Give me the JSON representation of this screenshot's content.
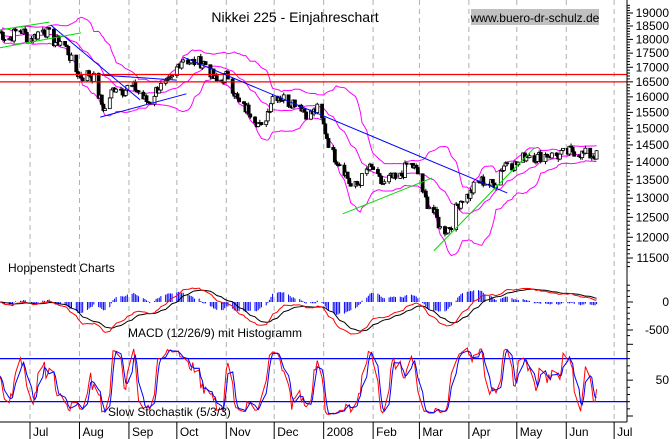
{
  "chart_data": {
    "type": "candlestick",
    "title": "Nikkei 225 - Einjahreschart",
    "watermark": "www.buero-dr-schulz.de",
    "source_label": "Hoppenstedt Charts",
    "y_scale": "log",
    "ylim": [
      11300,
      19300
    ],
    "grid": "vertical dashed at month starts",
    "y_ticks": [
      19000,
      18500,
      18000,
      17500,
      17000,
      16500,
      16000,
      15500,
      15000,
      14500,
      14000,
      13500,
      13000,
      12500,
      12000,
      11500
    ],
    "x_ticks": [
      {
        "date": "2007-07-01",
        "label": "Jul"
      },
      {
        "date": "2007-08-01",
        "label": "Aug"
      },
      {
        "date": "2007-09-01",
        "label": "Sep"
      },
      {
        "date": "2007-10-01",
        "label": "Oct"
      },
      {
        "date": "2007-11-01",
        "label": "Nov"
      },
      {
        "date": "2007-12-01",
        "label": "Dec"
      },
      {
        "date": "2008-01-01",
        "label": "2008"
      },
      {
        "date": "2008-02-01",
        "label": "Feb"
      },
      {
        "date": "2008-03-01",
        "label": "Mar"
      },
      {
        "date": "2008-04-01",
        "label": "Apr"
      },
      {
        "date": "2008-05-01",
        "label": "May"
      },
      {
        "date": "2008-06-01",
        "label": "Jun"
      },
      {
        "date": "2008-07-01",
        "label": "Jul"
      }
    ],
    "weekly_close": {
      "dates": [
        "2007-06-15",
        "2007-06-22",
        "2007-06-29",
        "2007-07-06",
        "2007-07-13",
        "2007-07-20",
        "2007-07-27",
        "2007-08-03",
        "2007-08-10",
        "2007-08-17",
        "2007-08-24",
        "2007-08-31",
        "2007-09-07",
        "2007-09-14",
        "2007-09-21",
        "2007-09-28",
        "2007-10-05",
        "2007-10-12",
        "2007-10-19",
        "2007-10-26",
        "2007-11-02",
        "2007-11-09",
        "2007-11-16",
        "2007-11-23",
        "2007-11-30",
        "2007-12-07",
        "2007-12-14",
        "2007-12-21",
        "2007-12-28",
        "2008-01-04",
        "2008-01-11",
        "2008-01-18",
        "2008-01-25",
        "2008-02-01",
        "2008-02-08",
        "2008-02-15",
        "2008-02-22",
        "2008-02-29",
        "2008-03-07",
        "2008-03-14",
        "2008-03-21",
        "2008-03-28",
        "2008-04-04",
        "2008-04-11",
        "2008-04-18",
        "2008-04-25",
        "2008-05-02",
        "2008-05-09",
        "2008-05-16",
        "2008-05-23",
        "2008-05-30",
        "2008-06-06",
        "2008-06-13",
        "2008-06-20"
      ],
      "values": [
        18160,
        18240,
        18130,
        18240,
        18160,
        17980,
        17190,
        16730,
        16560,
        15640,
        16290,
        16390,
        16060,
        15960,
        16230,
        16730,
        17190,
        17330,
        16980,
        16630,
        16560,
        15900,
        15410,
        15100,
        15900,
        16060,
        15740,
        15570,
        15510,
        14650,
        13920,
        13360,
        13500,
        13830,
        13360,
        13500,
        13920,
        13650,
        12820,
        12180,
        12380,
        12950,
        13360,
        13360,
        13550,
        13920,
        14070,
        14120,
        14290,
        14070,
        14350,
        14200,
        14350,
        14070
      ]
    },
    "horizontal_lines": [
      {
        "value": 16750,
        "color": "#ff0000"
      },
      {
        "value": 16500,
        "color": "#ff0000"
      }
    ],
    "trendlines": [
      {
        "color": "#0000ff",
        "points": [
          [
            "2007-07-14",
            18540
          ],
          [
            "2007-09-08",
            15900
          ]
        ]
      },
      {
        "color": "#0000ff",
        "points": [
          [
            "2007-08-15",
            16730
          ],
          [
            "2007-10-01",
            16560
          ]
        ]
      },
      {
        "color": "#0000ff",
        "points": [
          [
            "2007-08-14",
            15350
          ],
          [
            "2007-10-07",
            16100
          ]
        ]
      },
      {
        "color": "#0000ff",
        "points": [
          [
            "2007-10-05",
            17360
          ],
          [
            "2008-04-25",
            13140
          ]
        ]
      },
      {
        "color": "#00dd00",
        "points": [
          [
            "2007-06-12",
            17690
          ],
          [
            "2007-08-02",
            18240
          ]
        ]
      },
      {
        "color": "#00dd00",
        "points": [
          [
            "2007-06-12",
            18350
          ],
          [
            "2007-07-13",
            18650
          ]
        ]
      },
      {
        "color": "#00dd00",
        "points": [
          [
            "2008-01-13",
            12590
          ],
          [
            "2008-03-09",
            13550
          ]
        ]
      },
      {
        "color": "#00dd00",
        "points": [
          [
            "2008-03-10",
            11670
          ],
          [
            "2008-05-12",
            14410
          ]
        ]
      }
    ],
    "bollinger": {
      "color": "#ff00ff"
    },
    "macd": {
      "label": "MACD (12/26/9) mit Histogramm",
      "y_ticks": [
        0,
        -500
      ],
      "macd_color": "#ff0000",
      "signal_color": "#000000",
      "histogram_color": "#0000ff"
    },
    "stochastic": {
      "label": "Slow Stochastik (5/3/3)",
      "y_ticks": [
        50
      ],
      "levels": [
        80,
        20
      ],
      "k_color": "#ff0000",
      "d_color": "#0000ff",
      "level_color": "#0000ff"
    }
  }
}
